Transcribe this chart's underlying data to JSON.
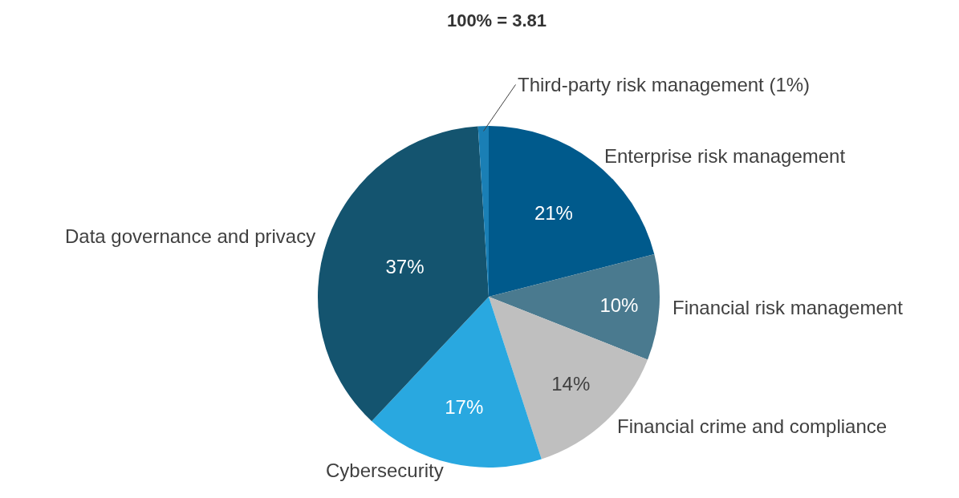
{
  "chart_data": {
    "type": "pie",
    "title": "100% = 3.81",
    "categories": [
      "Enterprise risk management",
      "Financial risk management",
      "Financial crime and compliance",
      "Cybersecurity",
      "Data governance and privacy",
      "Third-party risk management (1%)"
    ],
    "values": [
      21,
      10,
      14,
      17,
      37,
      1
    ],
    "colors": [
      "#005a8c",
      "#4a7a8f",
      "#bfbfbf",
      "#29a8e0",
      "#14546f",
      "#1a7fb5"
    ],
    "value_labels": [
      "21%",
      "10%",
      "14%",
      "17%",
      "37%",
      null
    ],
    "legend": false
  }
}
